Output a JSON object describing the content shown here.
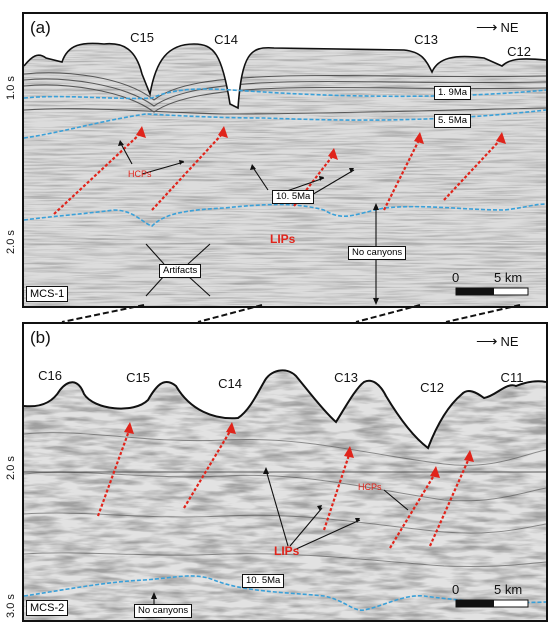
{
  "direction_label": "NE",
  "panel_a": {
    "label": "(a)",
    "line_name": "MCS-1",
    "canyons": [
      "C15",
      "C14",
      "C13",
      "C12"
    ],
    "y_ticks": [
      "1.0 s",
      "2.0 s"
    ],
    "horizons": [
      "1. 9Ma",
      "5. 5Ma",
      "10. 5Ma"
    ],
    "hcps_label": "HCPs",
    "lips_label": "LIPs",
    "artifacts_label": "Artifacts",
    "no_canyons_label": "No canyons",
    "scale_start": "0",
    "scale_end": "5 km"
  },
  "panel_b": {
    "label": "(b)",
    "line_name": "MCS-2",
    "canyons": [
      "C16",
      "C15",
      "C14",
      "C13",
      "C12",
      "C11"
    ],
    "y_ticks": [
      "2.0 s",
      "3.0 s"
    ],
    "horizon": "10. 5Ma",
    "hcps_label": "HCPs",
    "lips_label": "LIPs",
    "no_canyons_label": "No canyons",
    "scale_start": "0",
    "scale_end": "5 km"
  },
  "colors": {
    "horizon_blue": "#3aa0d8",
    "annotation_red": "#e0241b",
    "frame": "#111111"
  }
}
